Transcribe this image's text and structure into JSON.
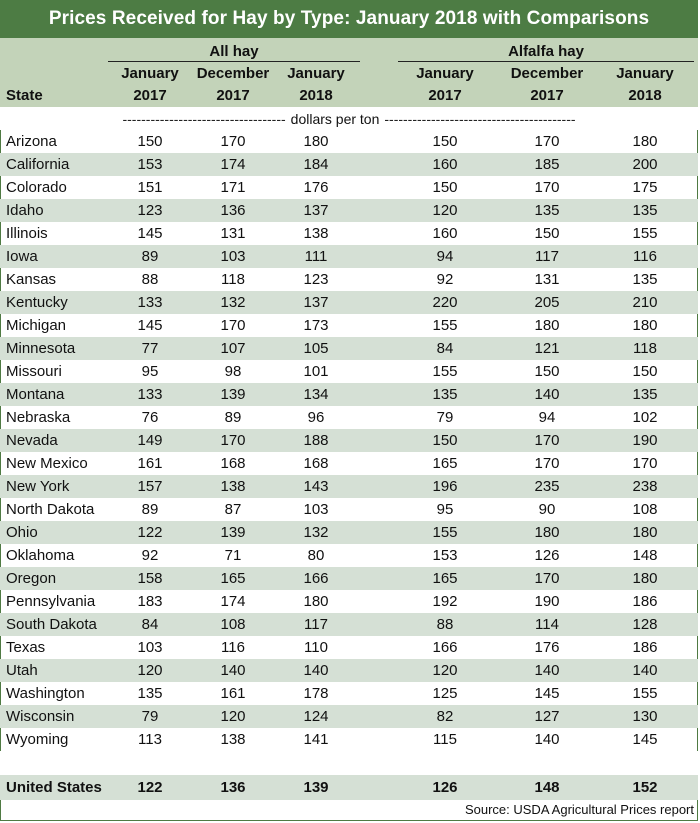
{
  "title": "Prices Received for Hay by Type: January 2018 with Comparisons",
  "groups": {
    "all_hay": "All hay",
    "alfalfa_hay": "Alfalfa hay"
  },
  "headers": {
    "state": "State",
    "c1": [
      "January",
      "2017"
    ],
    "c2": [
      "December",
      "2017"
    ],
    "c3": [
      "January",
      "2018"
    ],
    "c4": [
      "January",
      "2017"
    ],
    "c5": [
      "December",
      "2017"
    ],
    "c6": [
      "January",
      "2018"
    ]
  },
  "units": {
    "dashes_left": "-----------------------------------",
    "label": "dollars per ton",
    "dashes_right": "-----------------------------------------"
  },
  "rows": [
    {
      "state": "Arizona",
      "v": [
        "150",
        "170",
        "180",
        "150",
        "170",
        "180"
      ]
    },
    {
      "state": "California",
      "v": [
        "153",
        "174",
        "184",
        "160",
        "185",
        "200"
      ]
    },
    {
      "state": "Colorado",
      "v": [
        "151",
        "171",
        "176",
        "150",
        "170",
        "175"
      ]
    },
    {
      "state": "Idaho",
      "v": [
        "123",
        "136",
        "137",
        "120",
        "135",
        "135"
      ]
    },
    {
      "state": "Illinois",
      "v": [
        "145",
        "131",
        "138",
        "160",
        "150",
        "155"
      ]
    },
    {
      "state": "Iowa",
      "v": [
        "89",
        "103",
        "111",
        "94",
        "117",
        "116"
      ]
    },
    {
      "state": "Kansas",
      "v": [
        "88",
        "118",
        "123",
        "92",
        "131",
        "135"
      ]
    },
    {
      "state": "Kentucky",
      "v": [
        "133",
        "132",
        "137",
        "220",
        "205",
        "210"
      ]
    },
    {
      "state": "Michigan",
      "v": [
        "145",
        "170",
        "173",
        "155",
        "180",
        "180"
      ]
    },
    {
      "state": "Minnesota",
      "v": [
        "77",
        "107",
        "105",
        "84",
        "121",
        "118"
      ]
    },
    {
      "state": "Missouri",
      "v": [
        "95",
        "98",
        "101",
        "155",
        "150",
        "150"
      ]
    },
    {
      "state": "Montana",
      "v": [
        "133",
        "139",
        "134",
        "135",
        "140",
        "135"
      ]
    },
    {
      "state": "Nebraska",
      "v": [
        "76",
        "89",
        "96",
        "79",
        "94",
        "102"
      ]
    },
    {
      "state": "Nevada",
      "v": [
        "149",
        "170",
        "188",
        "150",
        "170",
        "190"
      ]
    },
    {
      "state": "New Mexico",
      "v": [
        "161",
        "168",
        "168",
        "165",
        "170",
        "170"
      ]
    },
    {
      "state": "New York",
      "v": [
        "157",
        "138",
        "143",
        "196",
        "235",
        "238"
      ]
    },
    {
      "state": "North Dakota",
      "v": [
        "89",
        "87",
        "103",
        "95",
        "90",
        "108"
      ]
    },
    {
      "state": "Ohio",
      "v": [
        "122",
        "139",
        "132",
        "155",
        "180",
        "180"
      ]
    },
    {
      "state": "Oklahoma",
      "v": [
        "92",
        "71",
        "80",
        "153",
        "126",
        "148"
      ]
    },
    {
      "state": "Oregon",
      "v": [
        "158",
        "165",
        "166",
        "165",
        "170",
        "180"
      ]
    },
    {
      "state": "Pennsylvania",
      "v": [
        "183",
        "174",
        "180",
        "192",
        "190",
        "186"
      ]
    },
    {
      "state": "South Dakota",
      "v": [
        "84",
        "108",
        "117",
        "88",
        "114",
        "128"
      ]
    },
    {
      "state": "Texas",
      "v": [
        "103",
        "116",
        "110",
        "166",
        "176",
        "186"
      ]
    },
    {
      "state": "Utah",
      "v": [
        "120",
        "140",
        "140",
        "120",
        "140",
        "140"
      ]
    },
    {
      "state": "Washington",
      "v": [
        "135",
        "161",
        "178",
        "125",
        "145",
        "155"
      ]
    },
    {
      "state": "Wisconsin",
      "v": [
        "79",
        "120",
        "124",
        "82",
        "127",
        "130"
      ]
    },
    {
      "state": "Wyoming",
      "v": [
        "113",
        "138",
        "141",
        "115",
        "140",
        "145"
      ]
    }
  ],
  "total": {
    "state": "United States",
    "v": [
      "122",
      "136",
      "139",
      "126",
      "148",
      "152"
    ]
  },
  "source": "Source: USDA Agricultural Prices report",
  "colors": {
    "title_bg": "#4d7c44",
    "header_bg": "#c3d3b9",
    "stripe_bg": "#d5e0d5"
  }
}
